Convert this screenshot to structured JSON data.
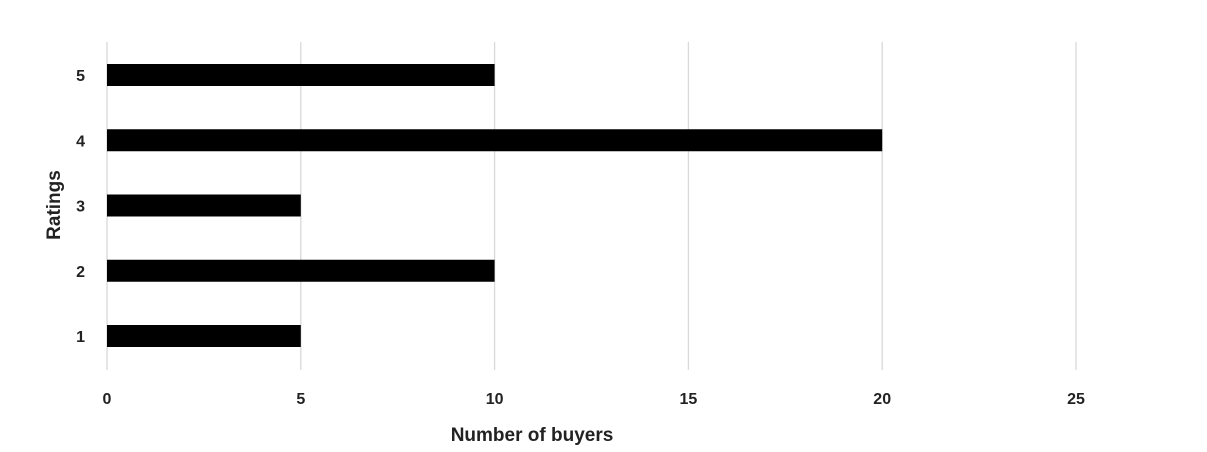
{
  "chart_data": {
    "type": "bar",
    "orientation": "horizontal",
    "categories": [
      "1",
      "2",
      "3",
      "4",
      "5"
    ],
    "values": [
      5,
      10,
      5,
      20,
      10
    ],
    "title": "",
    "xlabel": "Number of buyers",
    "ylabel": "Ratings",
    "xlim": [
      0,
      25
    ],
    "xticks": [
      "0",
      "5",
      "10",
      "15",
      "20",
      "25"
    ],
    "grid": "vertical",
    "legend": "none",
    "bar_color": "#000000",
    "grid_color": "#d9d9d9"
  }
}
